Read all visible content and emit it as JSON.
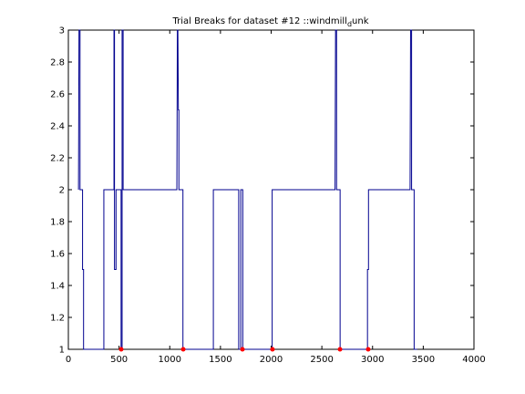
{
  "chart_data": {
    "type": "line",
    "title_parts": [
      "Trial Breaks for dataset #12 ::windmill",
      "d",
      "unk"
    ],
    "xlim": [
      0,
      4000
    ],
    "xticks": [
      0,
      500,
      1000,
      1500,
      2000,
      2500,
      3000,
      3500,
      4000
    ],
    "ylim": [
      1,
      3
    ],
    "yticks": [
      1,
      1.2,
      1.4,
      1.6,
      1.8,
      2,
      2.2,
      2.4,
      2.6,
      2.8,
      3
    ],
    "series": [
      {
        "color": "#00008f",
        "style": "line",
        "x": [
          100,
          105,
          115,
          115,
          140,
          140,
          150,
          150,
          350,
          350,
          450,
          450,
          455,
          455,
          470,
          470,
          520,
          520,
          530,
          530,
          540,
          540,
          1070,
          1075,
          1080,
          1085,
          1090,
          1090,
          1130,
          1130,
          1430,
          1430,
          1680,
          1680,
          1700,
          1700,
          1720,
          1720,
          2010,
          2010,
          2630,
          2635,
          2645,
          2645,
          2680,
          2680,
          2950,
          2950,
          2960,
          2960,
          3370,
          3375,
          3385,
          3385,
          3410,
          3410,
          3440
        ],
        "values": [
          2,
          3,
          3,
          2,
          2,
          1.5,
          1.5,
          1,
          1,
          2,
          2,
          3,
          3,
          1.5,
          1.5,
          2,
          2,
          1,
          1,
          3,
          3,
          2,
          2,
          3,
          3,
          2.5,
          2.5,
          2,
          2,
          1,
          1,
          2,
          2,
          1,
          1,
          2,
          2,
          1,
          1,
          2,
          2,
          3,
          3,
          2,
          2,
          1,
          1,
          1.5,
          1.5,
          2,
          2,
          3,
          3,
          2,
          2,
          1,
          1
        ]
      },
      {
        "color": "#ff0000",
        "style": "dots",
        "x": [
          521,
          1133,
          1717,
          2013,
          2679,
          2957
        ],
        "values": [
          1,
          1,
          1,
          1,
          1,
          1
        ]
      }
    ]
  }
}
